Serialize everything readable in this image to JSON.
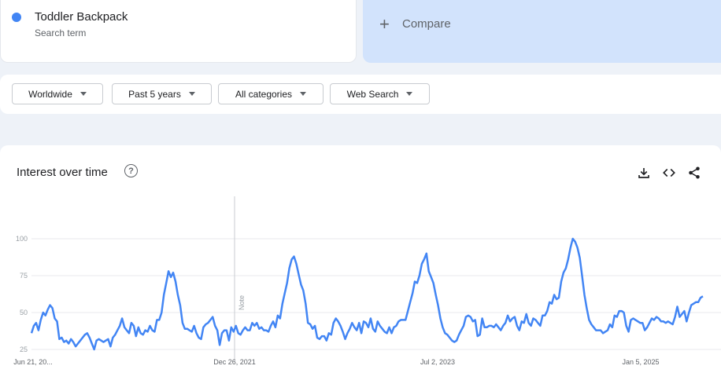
{
  "search_term": {
    "title": "Toddler Backpack",
    "subtitle": "Search term",
    "color": "#4285f4"
  },
  "compare": {
    "label": "Compare",
    "icon": "plus-icon"
  },
  "filters": [
    {
      "label": "Worldwide"
    },
    {
      "label": "Past 5 years"
    },
    {
      "label": "All categories"
    },
    {
      "label": "Web Search"
    }
  ],
  "chart_panel": {
    "title": "Interest over time",
    "help_icon": "question-mark-icon",
    "tools": [
      "download-icon",
      "embed-code-icon",
      "share-icon"
    ],
    "note_label": "Note"
  },
  "chart_data": {
    "type": "line",
    "title": "Interest over time",
    "xlabel": "",
    "ylabel": "",
    "ylim": [
      10,
      100
    ],
    "yticks": [
      25,
      50,
      75,
      100
    ],
    "grid": true,
    "line_color": "#4285f4",
    "x_start": "Jun 21, 2020",
    "x_tick_labels": [
      "Jun 21, 20...",
      "Dec 26, 2021",
      "Jul 2, 2023",
      "Jan 5, 2025"
    ],
    "series": [
      {
        "name": "Toddler Backpack",
        "values": [
          36,
          41,
          43,
          38,
          45,
          50,
          48,
          52,
          55,
          53,
          46,
          44,
          32,
          33,
          30,
          31,
          29,
          32,
          30,
          27,
          29,
          31,
          33,
          35,
          36,
          33,
          29,
          25,
          31,
          32,
          31,
          30,
          31,
          32,
          27,
          33,
          35,
          38,
          41,
          46,
          40,
          38,
          36,
          43,
          41,
          34,
          40,
          36,
          35,
          38,
          37,
          41,
          38,
          37,
          45,
          45,
          50,
          62,
          70,
          78,
          74,
          77,
          71,
          62,
          55,
          43,
          39,
          39,
          38,
          37,
          41,
          36,
          33,
          32,
          40,
          42,
          43,
          45,
          47,
          41,
          38,
          28,
          36,
          38,
          38,
          31,
          40,
          37,
          41,
          36,
          35,
          38,
          40,
          38,
          38,
          43,
          41,
          43,
          39,
          40,
          38,
          38,
          37,
          41,
          44,
          40,
          48,
          46,
          56,
          63,
          70,
          80,
          86,
          88,
          83,
          76,
          69,
          65,
          56,
          43,
          42,
          39,
          41,
          33,
          32,
          34,
          34,
          31,
          36,
          35,
          43,
          46,
          44,
          41,
          37,
          32,
          36,
          39,
          43,
          40,
          38,
          43,
          36,
          44,
          43,
          40,
          46,
          39,
          37,
          44,
          41,
          39,
          37,
          36,
          40,
          36,
          40,
          41,
          44,
          45,
          45,
          45,
          51,
          57,
          63,
          71,
          70,
          75,
          83,
          86,
          90,
          78,
          74,
          70,
          62,
          55,
          46,
          40,
          36,
          35,
          33,
          31,
          30,
          31,
          35,
          38,
          41,
          47,
          48,
          47,
          44,
          45,
          34,
          35,
          46,
          40,
          40,
          41,
          41,
          40,
          42,
          40,
          38,
          41,
          43,
          48,
          44,
          46,
          47,
          41,
          38,
          44,
          43,
          49,
          43,
          41,
          46,
          45,
          43,
          41,
          48,
          48,
          51,
          57,
          56,
          62,
          59,
          60,
          71,
          77,
          80,
          86,
          94,
          100,
          98,
          94,
          87,
          75,
          62,
          53,
          45,
          42,
          40,
          38,
          38,
          38,
          36,
          37,
          38,
          42,
          40,
          48,
          47,
          51,
          51,
          50,
          41,
          37,
          45,
          46,
          45,
          44,
          43,
          43,
          38,
          40,
          43,
          46,
          45,
          47,
          46,
          44,
          44,
          43,
          44,
          43,
          42,
          47,
          54,
          47,
          49,
          51,
          44,
          50,
          55,
          56,
          57,
          57,
          60,
          61
        ]
      }
    ]
  }
}
